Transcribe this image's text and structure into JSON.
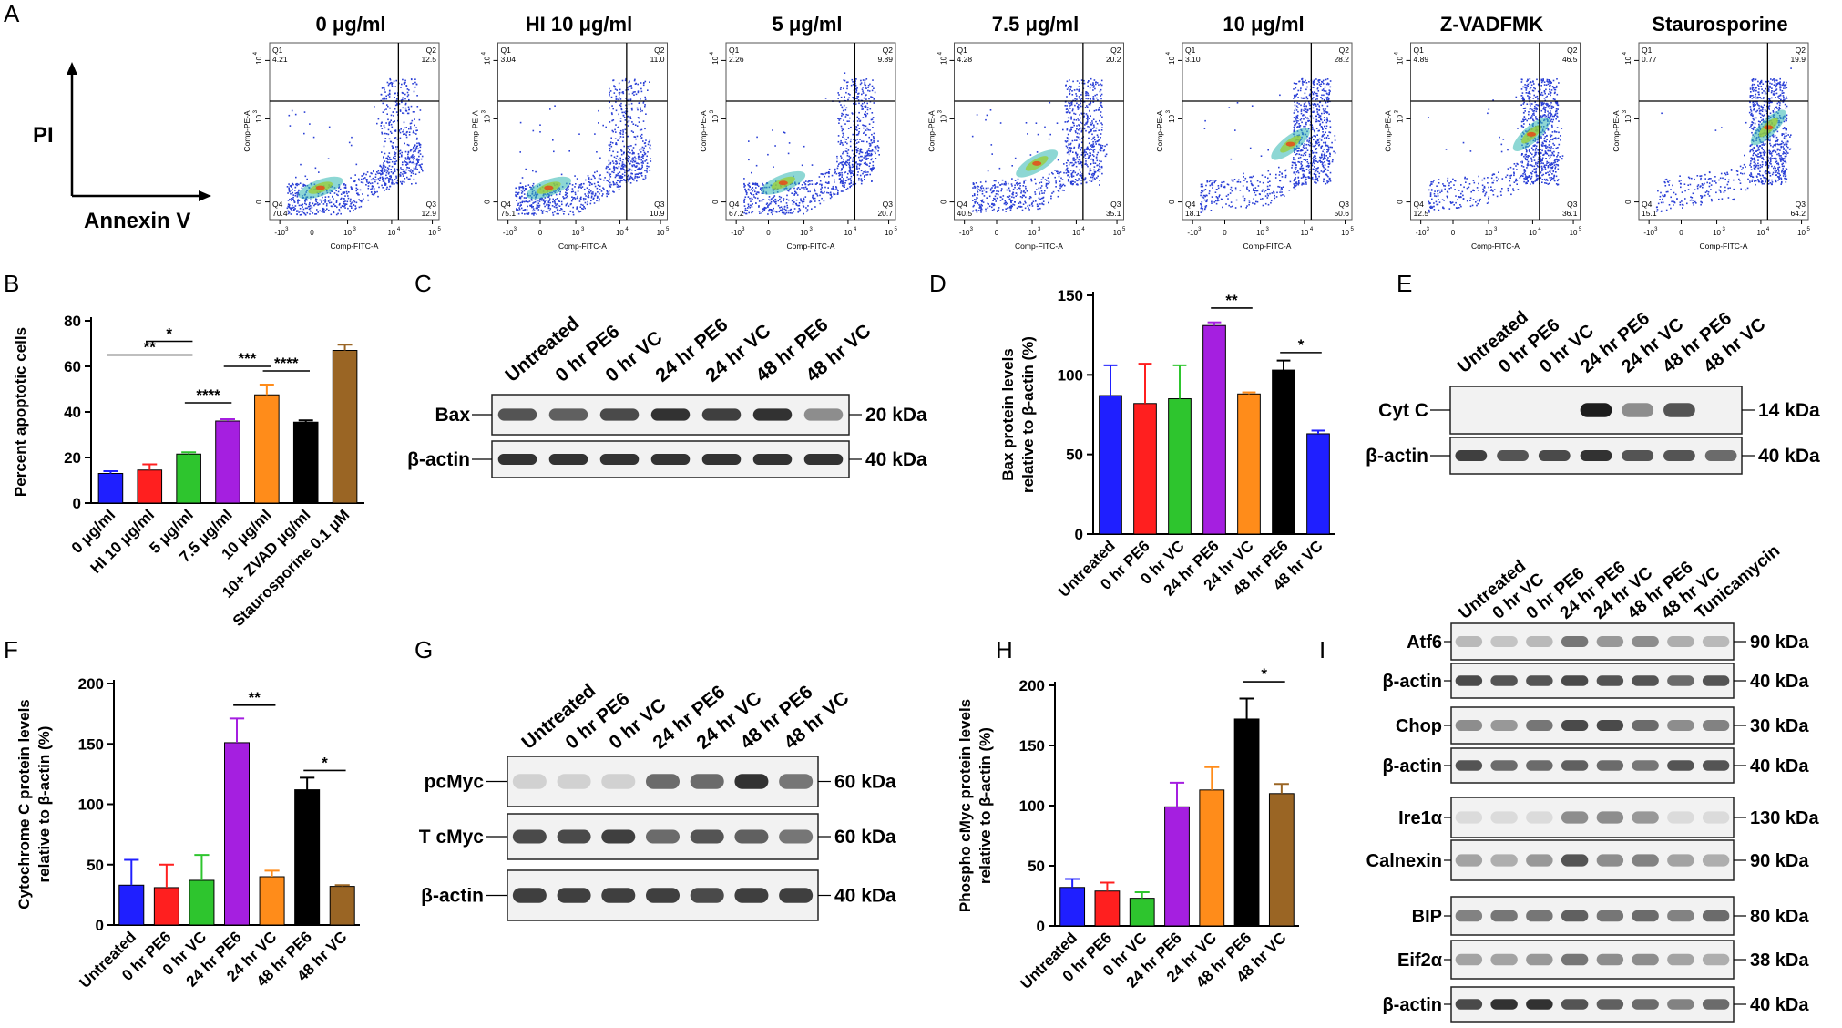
{
  "panel_letters": {
    "a": "A",
    "b": "B",
    "c": "C",
    "d": "D",
    "e": "E",
    "f": "F",
    "g": "G",
    "h": "H",
    "i": "I"
  },
  "panel_a": {
    "y_axis_label": "PI",
    "x_axis_label": "Annexin V",
    "plots": [
      {
        "title": "0 μg/ml",
        "q1": "4.21",
        "q2": "12.5",
        "q3": "12.9",
        "q4": "70.4"
      },
      {
        "title": "HI 10 μg/ml",
        "q1": "3.04",
        "q2": "11.0",
        "q3": "10.9",
        "q4": "75.1"
      },
      {
        "title": "5 μg/ml",
        "q1": "2.26",
        "q2": "9.89",
        "q3": "20.7",
        "q4": "67.2"
      },
      {
        "title": "7.5 μg/ml",
        "q1": "4.28",
        "q2": "20.2",
        "q3": "35.1",
        "q4": "40.5"
      },
      {
        "title": "10 μg/ml",
        "q1": "3.10",
        "q2": "28.2",
        "q3": "50.6",
        "q4": "18.1"
      },
      {
        "title": "Z-VADFMK",
        "q1": "4.89",
        "q2": "46.5",
        "q3": "36.1",
        "q4": "12.5"
      },
      {
        "title": "Staurosporine",
        "q1": "0.77",
        "q2": "19.9",
        "q3": "64.2",
        "q4": "15.1"
      }
    ],
    "quadrant_names": {
      "q1": "Q1",
      "q2": "Q2",
      "q3": "Q3",
      "q4": "Q4"
    },
    "y_channel": "Comp-PE-A",
    "x_channel": "Comp-FITC-A",
    "x_ticks": [
      "-10",
      "0",
      "10",
      "10",
      "10"
    ],
    "x_tick_exponents": [
      "3",
      "",
      "3",
      "4",
      "5"
    ],
    "y_ticks": [
      "0",
      "10",
      "10"
    ],
    "y_tick_exponents": [
      "",
      "3",
      "4"
    ]
  },
  "panel_c": {
    "lanes": [
      "Untreated",
      "0 hr PE6",
      "0 hr VC",
      "24 hr PE6",
      "24 hr VC",
      "48 hr PE6",
      "48 hr VC"
    ],
    "rows": [
      {
        "label": "Bax",
        "kda": "20 kDa"
      },
      {
        "label": "β-actin",
        "kda": "40 kDa"
      }
    ]
  },
  "panel_e": {
    "lanes": [
      "Untreated",
      "0 hr PE6",
      "0 hr VC",
      "24 hr PE6",
      "24 hr VC",
      "48 hr PE6",
      "48 hr VC"
    ],
    "rows": [
      {
        "label": "Cyt C",
        "kda": "14 kDa"
      },
      {
        "label": "β-actin",
        "kda": "40 kDa"
      }
    ]
  },
  "panel_g": {
    "lanes": [
      "Untreated",
      "0 hr PE6",
      "0 hr VC",
      "24 hr PE6",
      "24 hr VC",
      "48 hr PE6",
      "48 hr VC"
    ],
    "rows": [
      {
        "label": "pcMyc",
        "kda": "60 kDa"
      },
      {
        "label": "T cMyc",
        "kda": "60 kDa"
      },
      {
        "label": "β-actin",
        "kda": "40 kDa"
      }
    ]
  },
  "panel_i": {
    "lanes": [
      "Untreated",
      "0 hr VC",
      "0 hr PE6",
      "24 hr PE6",
      "24 hr VC",
      "48 hr PE6",
      "48 hr VC",
      "Tunicamycin"
    ],
    "rows": [
      {
        "label": "Atf6",
        "kda": "90 kDa"
      },
      {
        "label": "β-actin",
        "kda": "40 kDa"
      },
      {
        "label": "Chop",
        "kda": "30 kDa"
      },
      {
        "label": "β-actin",
        "kda": "40 kDa"
      },
      {
        "label": "Ire1α",
        "kda": "130 kDa"
      },
      {
        "label": "Calnexin",
        "kda": "90 kDa"
      },
      {
        "label": "BIP",
        "kda": "80 kDa"
      },
      {
        "label": "Eif2α",
        "kda": "38 kDa"
      },
      {
        "label": "β-actin",
        "kda": "40 kDa"
      }
    ]
  },
  "chart_data": [
    {
      "id": "B",
      "type": "bar",
      "title": "",
      "ylabel": "Percent apoptotic cells",
      "xlabel": "",
      "categories": [
        "0 μg/ml",
        "HI 10 μg/ml",
        "5 μg/ml",
        "7.5 μg/ml",
        "10 μg/ml",
        "10+ ZVAD μg/ml",
        "Staurosporine 0.1 μM"
      ],
      "values": [
        13,
        14.5,
        21.5,
        36,
        47.5,
        35.5,
        67
      ],
      "errors": [
        1,
        2.5,
        0.8,
        0.8,
        4.5,
        0.8,
        2.5
      ],
      "colors": [
        "#1f1fff",
        "#ff1f1f",
        "#2ec52e",
        "#a51fe0",
        "#ff8c1a",
        "#000000",
        "#9a6524"
      ],
      "ylim": [
        0,
        80
      ],
      "yticks": [
        0,
        20,
        40,
        60,
        80
      ],
      "significance": [
        {
          "from": 0,
          "to": 2,
          "level": 65,
          "label": "**"
        },
        {
          "from": 1,
          "to": 2,
          "level": 71,
          "label": "*"
        },
        {
          "from": 2,
          "to": 3,
          "level": 44,
          "label": "****"
        },
        {
          "from": 3,
          "to": 4,
          "level": 60,
          "label": "***"
        },
        {
          "from": 4,
          "to": 5,
          "level": 58,
          "label": "****"
        }
      ]
    },
    {
      "id": "D",
      "type": "bar",
      "title": "",
      "ylabel": "Bax protein levels relative to β-actin (%)",
      "xlabel": "",
      "categories": [
        "Untreated",
        "0 hr PE6",
        "0 hr VC",
        "24 hr PE6",
        "24 hr VC",
        "48 hr PE6",
        "48 hr VC"
      ],
      "values": [
        87,
        82,
        85,
        131,
        88,
        103,
        63
      ],
      "errors": [
        19,
        25,
        21,
        2,
        1,
        6,
        2
      ],
      "colors": [
        "#1f1fff",
        "#ff1f1f",
        "#2ec52e",
        "#a51fe0",
        "#ff8c1a",
        "#000000",
        "#1f1fff"
      ],
      "ylim": [
        0,
        150
      ],
      "yticks": [
        0,
        50,
        100,
        150
      ],
      "significance": [
        {
          "from": 3,
          "to": 4,
          "level": 142,
          "label": "**"
        },
        {
          "from": 5,
          "to": 6,
          "level": 114,
          "label": "*"
        }
      ]
    },
    {
      "id": "F",
      "type": "bar",
      "title": "",
      "ylabel": "Cytochrome C protein levels relative to β-actin (%)",
      "xlabel": "",
      "categories": [
        "Untreated",
        "0 hr PE6",
        "0 hr VC",
        "24 hr PE6",
        "24 hr VC",
        "48 hr PE6",
        "48 hr VC"
      ],
      "values": [
        33,
        31,
        37,
        151,
        40,
        112,
        32
      ],
      "errors": [
        21,
        19,
        21,
        20,
        5,
        10,
        1
      ],
      "colors": [
        "#1f1fff",
        "#ff1f1f",
        "#2ec52e",
        "#a51fe0",
        "#ff8c1a",
        "#000000",
        "#9a6524"
      ],
      "ylim": [
        0,
        200
      ],
      "yticks": [
        0,
        50,
        100,
        150,
        200
      ],
      "significance": [
        {
          "from": 3,
          "to": 4,
          "level": 182,
          "label": "**"
        },
        {
          "from": 5,
          "to": 6,
          "level": 128,
          "label": "*"
        }
      ]
    },
    {
      "id": "H",
      "type": "bar",
      "title": "",
      "ylabel": "Phospho cMyc protein levels relative to β-actin (%)",
      "xlabel": "",
      "categories": [
        "Untreated",
        "0 hr PE6",
        "0 hr VC",
        "24 hr PE6",
        "24 hr VC",
        "48 hr PE6",
        "48 hr VC"
      ],
      "values": [
        32,
        29,
        23,
        99,
        113,
        172,
        110
      ],
      "errors": [
        7,
        7,
        5,
        20,
        19,
        17,
        8
      ],
      "colors": [
        "#1f1fff",
        "#ff1f1f",
        "#2ec52e",
        "#a51fe0",
        "#ff8c1a",
        "#000000",
        "#9a6524"
      ],
      "ylim": [
        0,
        200
      ],
      "yticks": [
        0,
        50,
        100,
        150,
        200
      ],
      "significance": [
        {
          "from": 5,
          "to": 6,
          "level": 203,
          "label": "*"
        }
      ]
    }
  ]
}
